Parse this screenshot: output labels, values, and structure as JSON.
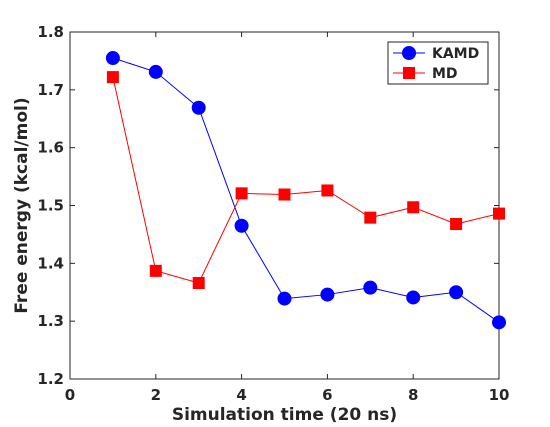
{
  "chart_data": {
    "type": "line",
    "title": "",
    "xlabel": "Simulation time (20 ns)",
    "ylabel": "Free energy (kcal/mol)",
    "xlim": [
      0,
      10
    ],
    "ylim": [
      1.2,
      1.8
    ],
    "xticks": [
      "0",
      "2",
      "4",
      "6",
      "8",
      "10"
    ],
    "yticks": [
      "1.2",
      "1.3",
      "1.4",
      "1.5",
      "1.6",
      "1.7",
      "1.8"
    ],
    "grid": false,
    "legend_position": "top-right",
    "x": [
      1,
      2,
      3,
      4,
      5,
      6,
      7,
      8,
      9,
      10
    ],
    "series": [
      {
        "name": "KAMD",
        "color": "#0000ff",
        "marker": "circle",
        "values": [
          1.755,
          1.731,
          1.669,
          1.465,
          1.339,
          1.346,
          1.358,
          1.341,
          1.35,
          1.298
        ]
      },
      {
        "name": "MD",
        "color": "#ff0000",
        "marker": "square",
        "values": [
          1.722,
          1.387,
          1.366,
          1.521,
          1.519,
          1.526,
          1.479,
          1.497,
          1.468,
          1.486
        ]
      }
    ]
  }
}
